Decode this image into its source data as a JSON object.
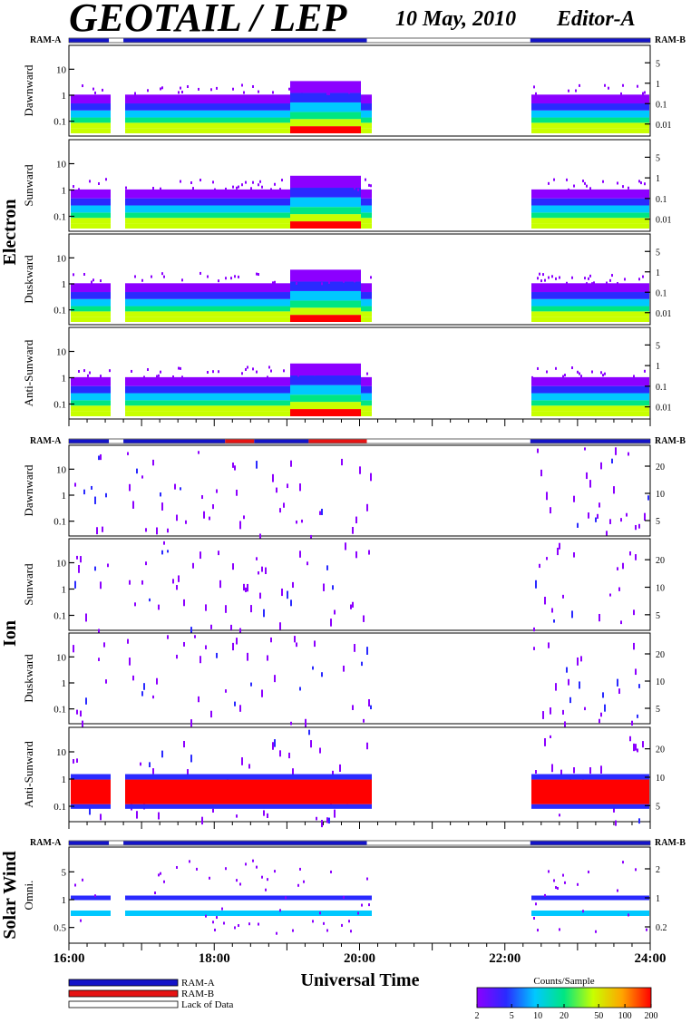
{
  "title": "GEOTAIL / LEP",
  "date": "10 May, 2010",
  "editor": "Editor-A",
  "colors": {
    "ram_a": "#1414c8",
    "ram_b": "#e61414",
    "colorbar_stops": [
      "#8c00ff",
      "#2a2aff",
      "#00c8ff",
      "#00e682",
      "#c8ff00",
      "#ffa500",
      "#ff0000"
    ]
  },
  "chart_data": {
    "type": "heatmap",
    "xlabel": "Universal Time",
    "xticks": [
      "16:00",
      "18:00",
      "20:00",
      "22:00",
      "24:00"
    ],
    "x_range_hours": [
      16,
      24
    ],
    "rams": {
      "left_label": "RAM-A",
      "right_label": "RAM-B"
    },
    "groups": [
      {
        "name": "Electron",
        "ram_bar": [
          [
            16.0,
            16.55,
            "a"
          ],
          [
            16.75,
            20.1,
            "a"
          ],
          [
            22.35,
            24.0,
            "a"
          ]
        ],
        "panels": [
          {
            "label": "Dawnward",
            "left_ticks": [
              "10",
              "1",
              "0.1"
            ],
            "right_ticks": [
              "5",
              "1",
              "0.1",
              "0.01"
            ],
            "profile": "e"
          },
          {
            "label": "Sunward",
            "left_ticks": [
              "10",
              "1",
              "0.1"
            ],
            "right_ticks": [
              "5",
              "1",
              "0.1",
              "0.01"
            ],
            "profile": "e"
          },
          {
            "label": "Duskward",
            "left_ticks": [
              "10",
              "1",
              "0.1"
            ],
            "right_ticks": [
              "5",
              "1",
              "0.1",
              "0.01"
            ],
            "profile": "e"
          },
          {
            "label": "Anti-Sunward",
            "left_ticks": [
              "10",
              "1",
              "0.1"
            ],
            "right_ticks": [
              "5",
              "1",
              "0.1",
              "0.01"
            ],
            "profile": "e"
          }
        ]
      },
      {
        "name": "Ion",
        "ram_bar": [
          [
            16.0,
            16.55,
            "a"
          ],
          [
            16.75,
            18.15,
            "a"
          ],
          [
            18.15,
            18.55,
            "b"
          ],
          [
            18.55,
            19.3,
            "a"
          ],
          [
            19.3,
            20.1,
            "b"
          ],
          [
            22.35,
            24.0,
            "a"
          ]
        ],
        "panels": [
          {
            "label": "Dawnward",
            "left_ticks": [
              "10",
              "1",
              "0.1"
            ],
            "right_ticks": [
              "20",
              "10",
              "5"
            ],
            "profile": "i"
          },
          {
            "label": "Sunward",
            "left_ticks": [
              "10",
              "1",
              "0.1"
            ],
            "right_ticks": [
              "20",
              "10",
              "5"
            ],
            "profile": "i"
          },
          {
            "label": "Duskward",
            "left_ticks": [
              "10",
              "1",
              "0.1"
            ],
            "right_ticks": [
              "20",
              "10",
              "5"
            ],
            "profile": "i"
          },
          {
            "label": "Anti-Sunward",
            "left_ticks": [
              "10",
              "1",
              "0.1"
            ],
            "right_ticks": [
              "20",
              "10",
              "5"
            ],
            "profile": "ia"
          }
        ]
      },
      {
        "name": "Solar Wind",
        "ram_bar": [
          [
            16.0,
            16.55,
            "a"
          ],
          [
            16.75,
            20.1,
            "a"
          ],
          [
            22.35,
            24.0,
            "a"
          ]
        ],
        "panels": [
          {
            "label": "Omni.",
            "left_ticks": [
              "5",
              "1",
              "0.5"
            ],
            "right_ticks": [
              "2",
              "1",
              "0.2"
            ],
            "profile": "sw"
          }
        ]
      }
    ],
    "data_gaps_hours": [
      [
        16.55,
        16.75
      ],
      [
        20.15,
        22.35
      ]
    ],
    "colorbar": {
      "title": "Counts/Sample",
      "ticks": [
        "2",
        "5",
        "10",
        "20",
        "50",
        "100",
        "200"
      ]
    }
  },
  "legend": [
    {
      "label": "RAM-A",
      "swatch": "ram_a"
    },
    {
      "label": "RAM-B",
      "swatch": "ram_b"
    },
    {
      "label": "Lack of Data",
      "swatch": "none"
    }
  ]
}
